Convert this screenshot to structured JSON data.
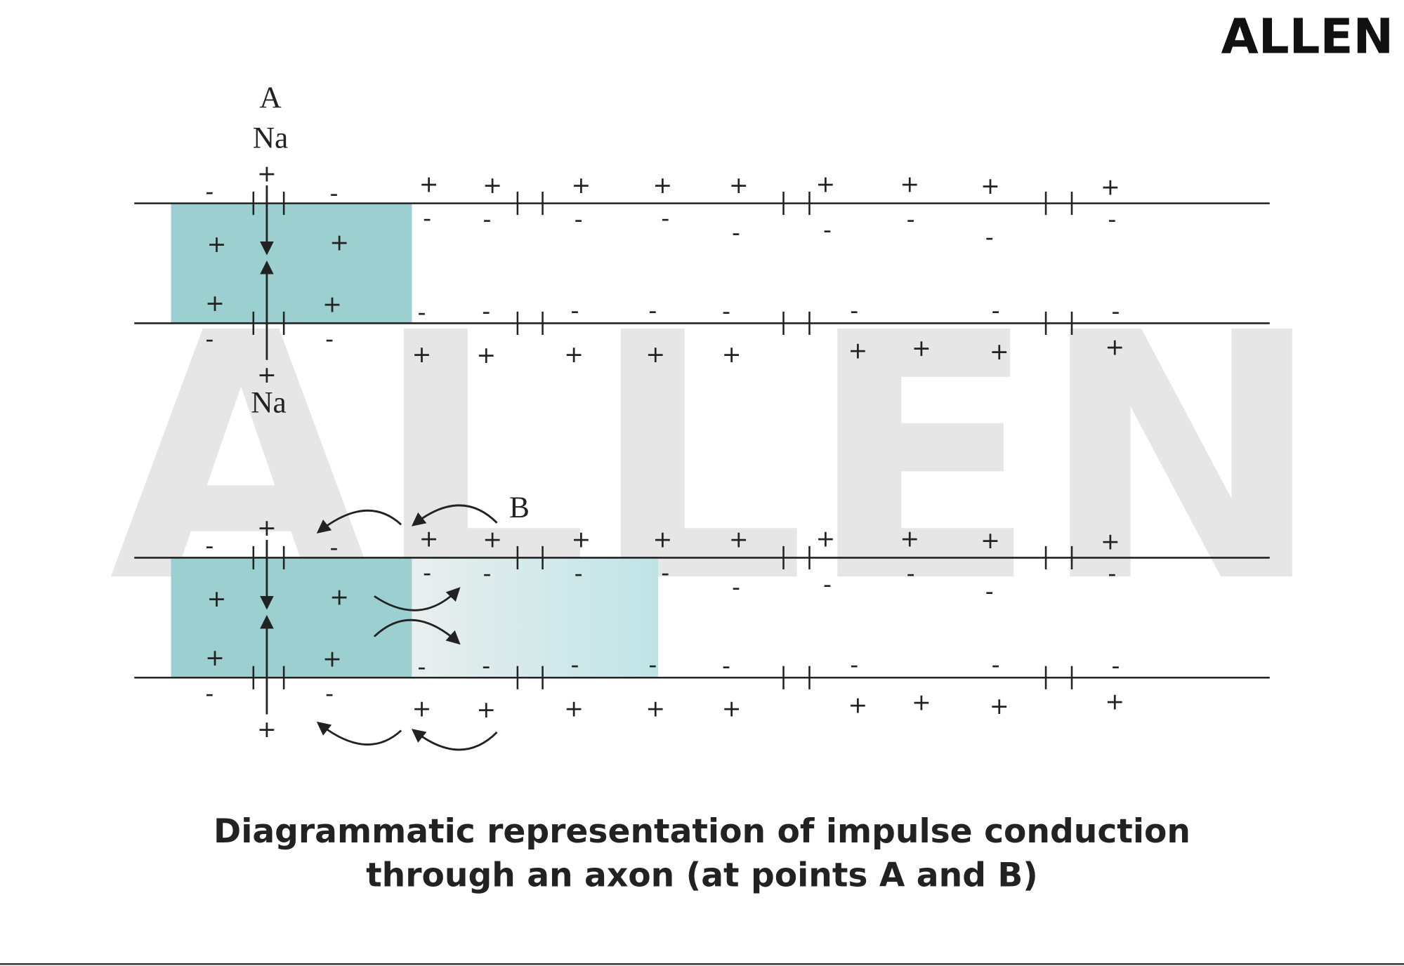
{
  "logo": "ALLEN",
  "watermark": "ALLEN",
  "panels": [
    {
      "label": "A",
      "ion_top": "Na",
      "ion_bottom": "Na",
      "signs": [
        "-",
        "+",
        "-",
        "+",
        "+",
        "+",
        "+",
        "+",
        "+",
        "+",
        "+",
        "+",
        "+",
        "+",
        "-",
        "-",
        "-",
        "-",
        "-",
        "-",
        "-",
        "-",
        "-",
        "+",
        "+",
        "-",
        "-",
        "-",
        "-",
        "-",
        "-",
        "-",
        "-",
        "-",
        "-",
        "+",
        "+",
        "+",
        "+",
        "+",
        "+",
        "+",
        "+",
        "+",
        "+"
      ]
    },
    {
      "label": "B",
      "signs": [
        "-",
        "+",
        "-",
        "+",
        "+",
        "+",
        "+",
        "+",
        "+",
        "+",
        "+",
        "+",
        "+",
        "+",
        "-",
        "-",
        "-",
        "-",
        "-",
        "-",
        "-",
        "-",
        "-",
        "+",
        "+",
        "-",
        "-",
        "-",
        "-",
        "-",
        "-",
        "-",
        "-",
        "-",
        "-",
        "+",
        "+",
        "+",
        "+",
        "+",
        "+",
        "+",
        "+",
        "+",
        "+"
      ]
    }
  ],
  "caption": {
    "line1": "Diagrammatic representation of impulse conduction",
    "line2": "through an axon (at points A and B)"
  }
}
